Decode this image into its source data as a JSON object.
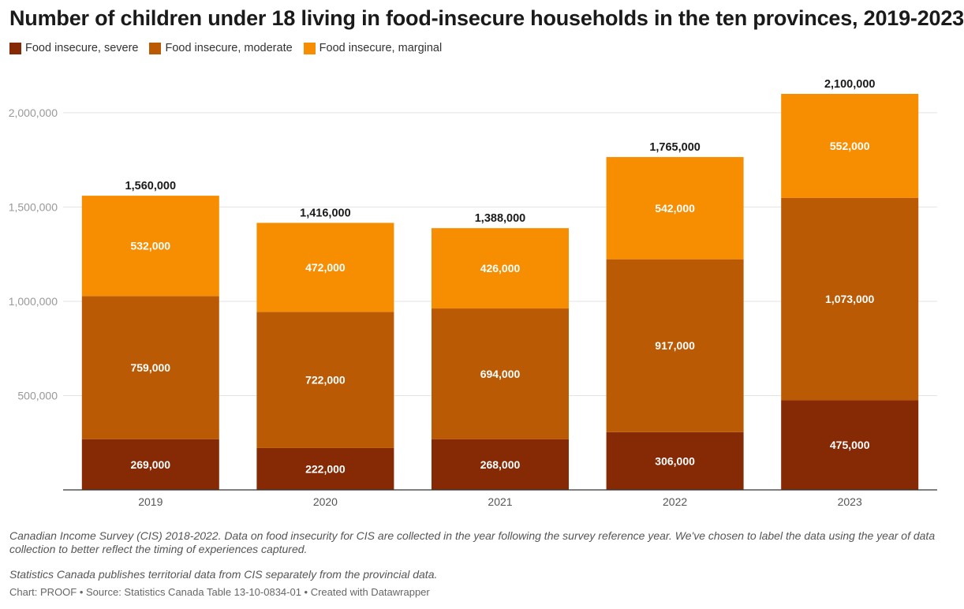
{
  "title": "Number of children under 18 living in food-insecure households in the ten provinces, 2019-2023",
  "legend": [
    {
      "label": "Food insecure, severe",
      "color": "#852a05"
    },
    {
      "label": "Food insecure, moderate",
      "color": "#bb5a04"
    },
    {
      "label": "Food insecure, marginal",
      "color": "#f78e01"
    }
  ],
  "chart_data": {
    "type": "bar",
    "stacked": true,
    "title": "Number of children under 18 living in food-insecure households in the ten provinces, 2019-2023",
    "categories": [
      "2019",
      "2020",
      "2021",
      "2022",
      "2023"
    ],
    "series": [
      {
        "name": "Food insecure, severe",
        "color": "#852a05",
        "values": [
          269000,
          222000,
          268000,
          306000,
          475000
        ],
        "labels": [
          "269,000",
          "222,000",
          "268,000",
          "306,000",
          "475,000"
        ]
      },
      {
        "name": "Food insecure, moderate",
        "color": "#bb5a04",
        "values": [
          759000,
          722000,
          694000,
          917000,
          1073000
        ],
        "labels": [
          "759,000",
          "722,000",
          "694,000",
          "917,000",
          "1,073,000"
        ]
      },
      {
        "name": "Food insecure, marginal",
        "color": "#f78e01",
        "values": [
          532000,
          472000,
          426000,
          542000,
          552000
        ],
        "labels": [
          "532,000",
          "472,000",
          "426,000",
          "542,000",
          "552,000"
        ]
      }
    ],
    "totals": [
      1560000,
      1416000,
      1388000,
      1765000,
      2100000
    ],
    "total_labels": [
      "1,560,000",
      "1,416,000",
      "1,388,000",
      "1,765,000",
      "2,100,000"
    ],
    "ylim": [
      0,
      2100000
    ],
    "yticks": [
      500000,
      1000000,
      1500000,
      2000000
    ],
    "ytick_labels": [
      "500,000",
      "1,000,000",
      "1,500,000",
      "2,000,000"
    ],
    "xlabel": "",
    "ylabel": "",
    "grid": true
  },
  "notes": {
    "line1": "Canadian Income Survey (CIS) 2018-2022. Data on food insecurity for CIS are collected in the year following the survey reference year. We've chosen to label the data using the year of data",
    "line2": "collection to better reflect the timing of experiences captured.",
    "line3": "Statistics Canada publishes territorial data from CIS separately from the provincial data."
  },
  "credit": "Chart: PROOF • Source: Statistics Canada Table 13-10-0834-01 • Created with Datawrapper"
}
